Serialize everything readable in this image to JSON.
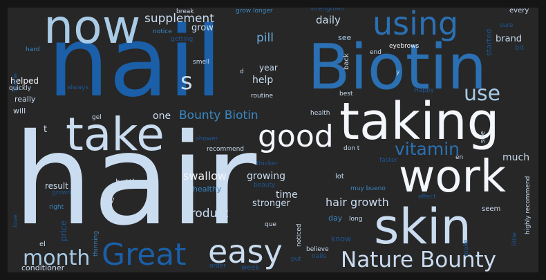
{
  "words": [
    {
      "text": "hair",
      "tone": "pale"
    },
    {
      "text": "nail",
      "tone": "deep"
    },
    {
      "text": "Biotin",
      "tone": "blue"
    },
    {
      "text": "taking",
      "tone": "white"
    },
    {
      "text": "work",
      "tone": "white"
    },
    {
      "text": "skin",
      "tone": "pale"
    },
    {
      "text": "take",
      "tone": "pale"
    },
    {
      "text": "now",
      "tone": "light"
    },
    {
      "text": "using",
      "tone": "blue"
    },
    {
      "text": "good",
      "tone": "white"
    },
    {
      "text": "Great",
      "tone": "deep"
    },
    {
      "text": "easy",
      "tone": "pale"
    },
    {
      "text": "Nature Bounty",
      "tone": "pale"
    },
    {
      "text": "use",
      "tone": "light"
    },
    {
      "text": "month",
      "tone": "light"
    },
    {
      "text": "vitamin",
      "tone": "blue"
    },
    {
      "text": "s",
      "tone": "pale"
    },
    {
      "text": "Bounty Biotin",
      "tone": "mid"
    },
    {
      "text": "supplement",
      "tone": "pale"
    },
    {
      "text": "product",
      "tone": "pale"
    },
    {
      "text": "hair growth",
      "tone": "pale"
    },
    {
      "text": "swallow",
      "tone": "white"
    },
    {
      "text": "daily",
      "tone": "pale"
    },
    {
      "text": "pill",
      "tone": "sky"
    },
    {
      "text": "grow",
      "tone": "pale"
    },
    {
      "text": "brand",
      "tone": "pale"
    },
    {
      "text": "much",
      "tone": "pale"
    },
    {
      "text": "one",
      "tone": "pale"
    },
    {
      "text": "help",
      "tone": "pale"
    },
    {
      "text": "time",
      "tone": "pale"
    },
    {
      "text": "growing",
      "tone": "pale"
    },
    {
      "text": "stronger",
      "tone": "pale"
    },
    {
      "text": "result",
      "tone": "pale"
    },
    {
      "text": "bottle",
      "tone": "pale"
    },
    {
      "text": "year",
      "tone": "pale"
    },
    {
      "text": "helped",
      "tone": "white"
    },
    {
      "text": "really",
      "tone": "pale"
    },
    {
      "text": "will",
      "tone": "pale"
    },
    {
      "text": "say",
      "tone": "pale"
    },
    {
      "text": "price",
      "tone": "dim"
    },
    {
      "text": "conditioner",
      "tone": "pale"
    },
    {
      "text": "healthy",
      "tone": "mid"
    },
    {
      "text": "know",
      "tone": "dim"
    },
    {
      "text": "day",
      "tone": "mid"
    },
    {
      "text": "el",
      "tone": "pale"
    },
    {
      "text": "t",
      "tone": "pale"
    },
    {
      "text": "see",
      "tone": "light"
    },
    {
      "text": "back",
      "tone": "pale"
    },
    {
      "text": "lot",
      "tone": "pale"
    },
    {
      "text": "seem",
      "tone": "pale"
    },
    {
      "text": "started",
      "tone": "dim"
    },
    {
      "text": "every",
      "tone": "pale"
    },
    {
      "text": "bit",
      "tone": "dim"
    },
    {
      "text": "sure",
      "tone": "dim"
    },
    {
      "text": "end",
      "tone": "pale"
    },
    {
      "text": "eyebrows",
      "tone": "white"
    },
    {
      "text": "break",
      "tone": "pale"
    },
    {
      "text": "grow longer",
      "tone": "mid"
    },
    {
      "text": "notice",
      "tone": "mid"
    },
    {
      "text": "getting",
      "tone": "dim"
    },
    {
      "text": "smell",
      "tone": "pale"
    },
    {
      "text": "hard",
      "tone": "mid"
    },
    {
      "text": "quickly",
      "tone": "pale"
    },
    {
      "text": "always",
      "tone": "dim"
    },
    {
      "text": "gel",
      "tone": "pale"
    },
    {
      "text": "routine",
      "tone": "pale"
    },
    {
      "text": "best",
      "tone": "pale"
    },
    {
      "text": "Happy",
      "tone": "dim"
    },
    {
      "text": "health",
      "tone": "pale"
    },
    {
      "text": "d",
      "tone": "pale"
    },
    {
      "text": "y",
      "tone": "pale"
    },
    {
      "text": "shower",
      "tone": "dim"
    },
    {
      "text": "recommend",
      "tone": "pale"
    },
    {
      "text": "don t",
      "tone": "pale"
    },
    {
      "text": "size",
      "tone": "pale"
    },
    {
      "text": "en",
      "tone": "pale"
    },
    {
      "text": "faster",
      "tone": "dim"
    },
    {
      "text": "thicker",
      "tone": "dim"
    },
    {
      "text": "beauty",
      "tone": "dim"
    },
    {
      "text": "muy bueno",
      "tone": "mid"
    },
    {
      "text": "effect",
      "tone": "dim"
    },
    {
      "text": "highly recommend",
      "tone": "pale"
    },
    {
      "text": "grown",
      "tone": "dim"
    },
    {
      "text": "right",
      "tone": "mid"
    },
    {
      "text": "love",
      "tone": "dim"
    },
    {
      "text": "thinning",
      "tone": "mid"
    },
    {
      "text": "que",
      "tone": "pale"
    },
    {
      "text": "noticed",
      "tone": "pale"
    },
    {
      "text": "long",
      "tone": "pale"
    },
    {
      "text": "believe",
      "tone": "pale"
    },
    {
      "text": "put",
      "tone": "dim"
    },
    {
      "text": "order",
      "tone": "dim"
    },
    {
      "text": "week",
      "tone": "dim"
    },
    {
      "text": "little",
      "tone": "dim"
    },
    {
      "text": "brittle",
      "tone": "dim"
    },
    {
      "text": "strengthen",
      "tone": "dim"
    },
    {
      "text": "make",
      "tone": "dim"
    },
    {
      "text": "nails",
      "tone": "dim"
    }
  ]
}
